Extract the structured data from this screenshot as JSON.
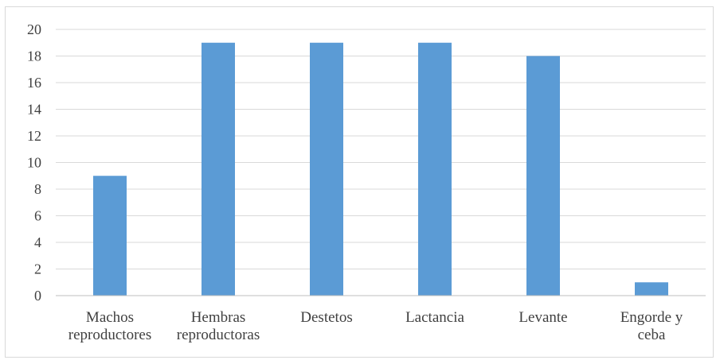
{
  "chart_data": {
    "type": "bar",
    "categories": [
      [
        "Machos",
        "reproductores"
      ],
      [
        "Hembras",
        "reproductoras"
      ],
      [
        "Destetos"
      ],
      [
        "Lactancia"
      ],
      [
        "Levante"
      ],
      [
        "Engorde y",
        "ceba"
      ]
    ],
    "values": [
      9,
      19,
      19,
      19,
      18,
      1
    ],
    "title": "",
    "xlabel": "",
    "ylabel": "",
    "ylim": [
      0,
      20
    ],
    "yticks": [
      "0",
      "2",
      "4",
      "6",
      "8",
      "10",
      "12",
      "14",
      "16",
      "18",
      "20"
    ],
    "grid": true,
    "legend": "none",
    "bar_color": "#5b9bd5",
    "grid_color": "#d9d9d9",
    "axis_color": "#bfbfbf",
    "text_color": "#404040"
  }
}
